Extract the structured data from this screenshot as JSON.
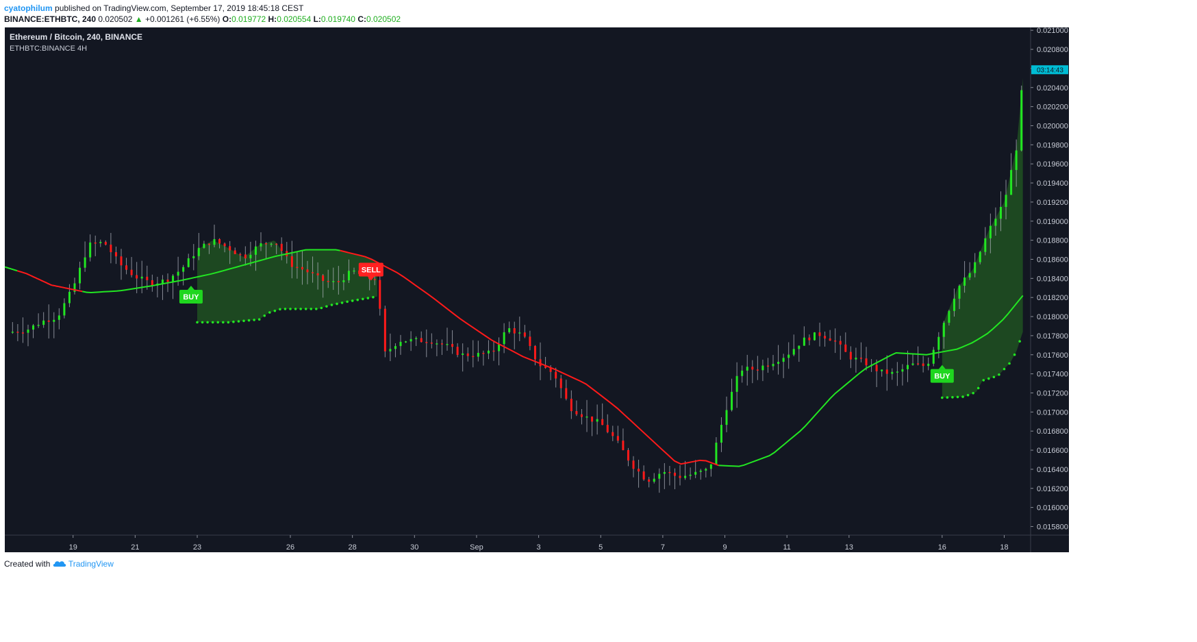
{
  "header": {
    "author": "cyatophilum",
    "published_text": "published on TradingView.com, September 17, 2019 18:45:18 CEST",
    "symbol": "BINANCE:ETHBTC, 240",
    "last": "0.020502",
    "change_arrow": "▲",
    "change": "+0.001261 (+6.55%)",
    "o_label": "O:",
    "o_value": "0.019772",
    "h_label": "H:",
    "h_value": "0.020554",
    "l_label": "L:",
    "l_value": "0.019740",
    "c_label": "C:",
    "c_value": "0.020502"
  },
  "footer": {
    "created_with": "Created with",
    "brand": "TradingView",
    "brand_icon": "tradingview-cloud-icon"
  },
  "colors": {
    "background": "#131722",
    "up": "#22e622",
    "down": "#ff1a1a",
    "cloud": "#1d4b22",
    "ma_up": "#22e622",
    "ma_down": "#ff1a1a",
    "buy": "#1fd61f",
    "sell": "#ff2121",
    "price_tag": "#00bcd4"
  },
  "chart_data": {
    "type": "candlestick",
    "title": "Ethereum / Bitcoin, 240, BINANCE",
    "subtitle": "ETHBTC:BINANCE 4H",
    "ylim": [
      0.01571,
      0.02103
    ],
    "y_ticks": [
      "0.021000",
      "0.020800",
      "0.020600",
      "0.020400",
      "0.020200",
      "0.020000",
      "0.019800",
      "0.019600",
      "0.019400",
      "0.019200",
      "0.019000",
      "0.018800",
      "0.018600",
      "0.018400",
      "0.018200",
      "0.018000",
      "0.017800",
      "0.017600",
      "0.017400",
      "0.017200",
      "0.017000",
      "0.016800",
      "0.016600",
      "0.016400",
      "0.016200",
      "0.016000",
      "0.015800"
    ],
    "x_ticks": [
      "19",
      "21",
      "23",
      "26",
      "28",
      "30",
      "Sep",
      "3",
      "5",
      "7",
      "9",
      "11",
      "13",
      "16",
      "18"
    ],
    "x_tick_days": [
      1,
      3,
      5,
      8,
      10,
      12,
      14,
      16,
      18,
      20,
      22,
      24,
      26,
      29,
      31
    ],
    "x_day_range": [
      -1.2,
      31.85
    ],
    "current_price_tag": "03:14:43",
    "current_price": 0.02059,
    "close_series": [
      [
        -1.0,
        0.01784
      ],
      [
        -0.5,
        0.01786
      ],
      [
        0.0,
        0.01795
      ],
      [
        0.5,
        0.018
      ],
      [
        1.0,
        0.0183
      ],
      [
        1.5,
        0.01875
      ],
      [
        2.0,
        0.01878
      ],
      [
        2.5,
        0.01855
      ],
      [
        3.0,
        0.01842
      ],
      [
        3.5,
        0.01835
      ],
      [
        4.0,
        0.01838
      ],
      [
        4.5,
        0.0185
      ],
      [
        5.0,
        0.0187
      ],
      [
        5.5,
        0.0188
      ],
      [
        6.0,
        0.01872
      ],
      [
        6.5,
        0.01862
      ],
      [
        7.0,
        0.01875
      ],
      [
        7.5,
        0.0188
      ],
      [
        8.0,
        0.01855
      ],
      [
        8.5,
        0.01848
      ],
      [
        9.0,
        0.01838
      ],
      [
        9.5,
        0.01835
      ],
      [
        10.0,
        0.01848
      ],
      [
        10.5,
        0.0184
      ],
      [
        10.8,
        0.0184
      ],
      [
        11.0,
        0.0176
      ],
      [
        11.5,
        0.01775
      ],
      [
        12.0,
        0.01775
      ],
      [
        12.5,
        0.01775
      ],
      [
        13.0,
        0.0177
      ],
      [
        13.5,
        0.0176
      ],
      [
        14.0,
        0.0176
      ],
      [
        14.5,
        0.01762
      ],
      [
        15.0,
        0.01788
      ],
      [
        15.5,
        0.0178
      ],
      [
        16.0,
        0.0175
      ],
      [
        16.5,
        0.0174
      ],
      [
        17.0,
        0.01705
      ],
      [
        17.5,
        0.01695
      ],
      [
        18.0,
        0.01688
      ],
      [
        18.5,
        0.0167
      ],
      [
        19.0,
        0.01645
      ],
      [
        19.5,
        0.01628
      ],
      [
        20.0,
        0.01638
      ],
      [
        20.5,
        0.01632
      ],
      [
        21.0,
        0.01635
      ],
      [
        21.5,
        0.0164
      ],
      [
        22.0,
        0.017
      ],
      [
        22.5,
        0.01745
      ],
      [
        23.0,
        0.01745
      ],
      [
        23.5,
        0.01752
      ],
      [
        24.0,
        0.0176
      ],
      [
        24.5,
        0.01775
      ],
      [
        25.0,
        0.01782
      ],
      [
        25.5,
        0.01776
      ],
      [
        26.0,
        0.01758
      ],
      [
        26.5,
        0.01752
      ],
      [
        27.0,
        0.01742
      ],
      [
        27.5,
        0.0174
      ],
      [
        28.0,
        0.0175
      ],
      [
        28.5,
        0.01748
      ],
      [
        29.0,
        0.0179
      ],
      [
        29.5,
        0.0183
      ],
      [
        30.0,
        0.0185
      ],
      [
        30.5,
        0.0189
      ],
      [
        31.0,
        0.0192
      ],
      [
        31.4,
        0.01978
      ],
      [
        31.6,
        0.0205
      ]
    ],
    "ma_series": [
      [
        -1.2,
        0.01852
      ],
      [
        -0.5,
        0.01845
      ],
      [
        0.3,
        0.01833
      ],
      [
        1.5,
        0.01825
      ],
      [
        2.5,
        0.01827
      ],
      [
        3.5,
        0.01832
      ],
      [
        4.5,
        0.01838
      ],
      [
        5.5,
        0.01845
      ],
      [
        6.5,
        0.01854
      ],
      [
        7.5,
        0.01863
      ],
      [
        8.5,
        0.0187
      ],
      [
        9.5,
        0.0187
      ],
      [
        10.5,
        0.01862
      ],
      [
        11.5,
        0.01845
      ],
      [
        12.5,
        0.01822
      ],
      [
        13.5,
        0.01797
      ],
      [
        14.5,
        0.01775
      ],
      [
        15.5,
        0.01758
      ],
      [
        16.5,
        0.01745
      ],
      [
        17.5,
        0.0173
      ],
      [
        18.5,
        0.01705
      ],
      [
        19.5,
        0.01675
      ],
      [
        20.5,
        0.01645
      ],
      [
        21.3,
        0.0165
      ],
      [
        21.8,
        0.01644
      ],
      [
        22.5,
        0.01643
      ],
      [
        23.5,
        0.01655
      ],
      [
        24.5,
        0.01682
      ],
      [
        25.5,
        0.01718
      ],
      [
        26.5,
        0.01745
      ],
      [
        27.5,
        0.01762
      ],
      [
        28.5,
        0.0176
      ],
      [
        29.0,
        0.01763
      ],
      [
        29.5,
        0.01766
      ],
      [
        30.0,
        0.01773
      ],
      [
        30.5,
        0.01783
      ],
      [
        31.0,
        0.01798
      ],
      [
        31.6,
        0.01822
      ]
    ],
    "ma_color_changes": [
      [
        -1.2,
        "up"
      ],
      [
        -0.8,
        "down"
      ],
      [
        1.3,
        "up"
      ],
      [
        9.6,
        "down"
      ],
      [
        21.8,
        "up"
      ]
    ],
    "stops": [
      [
        5.0,
        0.01794
      ],
      [
        6.0,
        0.01794
      ],
      [
        7.0,
        0.01797
      ],
      [
        7.3,
        0.01804
      ],
      [
        7.7,
        0.01808
      ],
      [
        8.9,
        0.01808
      ],
      [
        9.3,
        0.01812
      ],
      [
        9.9,
        0.01816
      ],
      [
        10.8,
        0.01821
      ],
      [
        29.0,
        0.01715
      ],
      [
        29.7,
        0.01716
      ],
      [
        30.1,
        0.01721
      ],
      [
        30.3,
        0.01733
      ],
      [
        30.8,
        0.01738
      ],
      [
        31.0,
        0.01745
      ],
      [
        31.2,
        0.01752
      ],
      [
        31.4,
        0.01764
      ],
      [
        31.6,
        0.01784
      ]
    ],
    "cloud_ranges": [
      [
        5.0,
        10.8
      ],
      [
        29.0,
        31.6
      ]
    ],
    "signals": [
      {
        "label": "BUY",
        "day": 4.8,
        "price": 0.01828
      },
      {
        "label": "SELL",
        "day": 10.6,
        "price": 0.01842
      },
      {
        "label": "BUY",
        "day": 29.0,
        "price": 0.01745
      }
    ],
    "candle_day_step": 0.1667
  }
}
